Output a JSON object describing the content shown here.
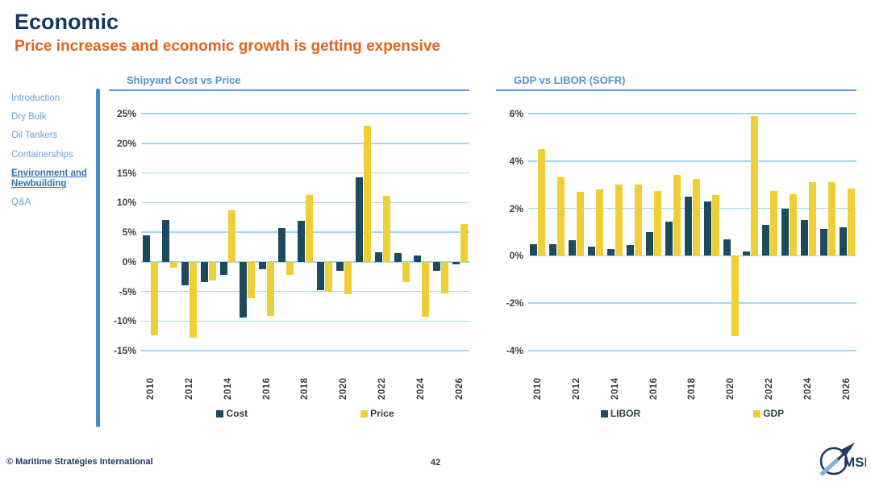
{
  "page": {
    "title": "Economic",
    "subtitle": "Price increases and economic growth is getting expensive",
    "footer_copyright": "© Maritime Strategies International",
    "page_number": "42",
    "logo_text": "MSI"
  },
  "sidebar": {
    "items": [
      {
        "label": "Introduction",
        "active": false
      },
      {
        "label": "Dry Bulk",
        "active": false
      },
      {
        "label": "Oil Tankers",
        "active": false
      },
      {
        "label": "Containerships",
        "active": false
      },
      {
        "label": "Environment and Newbuilding",
        "active": true
      },
      {
        "label": "Q&A",
        "active": false
      }
    ]
  },
  "colors": {
    "navy_bar": "#1e4a5e",
    "yellow_bar": "#eecf35",
    "gridline": "#9fd8f0",
    "chart_title": "#4d96cf",
    "heading": "#17375e",
    "subtitle": "#e2631e",
    "sidebar_link": "#6aa3d8",
    "sidebar_active": "#2e74b5",
    "divider": "#3e8ec9",
    "axis_text": "#3f3f3f",
    "legend_text": "#2f3e46"
  },
  "chart_data": [
    {
      "type": "bar",
      "title": "Shipyard Cost vs Price",
      "categories": [
        "2010",
        "2011",
        "2012",
        "2013",
        "2014",
        "2015",
        "2016",
        "2017",
        "2018",
        "2019",
        "2020",
        "2021",
        "2022",
        "2023",
        "2024",
        "2025",
        "2026"
      ],
      "x_label_every": 2,
      "series": [
        {
          "name": "Cost",
          "color_key": "navy",
          "values": [
            4.4,
            7.0,
            -4.0,
            -3.4,
            -2.2,
            -9.4,
            -1.3,
            5.7,
            6.9,
            -4.8,
            -1.5,
            14.2,
            1.6,
            1.4,
            1.1,
            -1.5,
            -0.4
          ]
        },
        {
          "name": "Price",
          "color_key": "yellow",
          "values": [
            -12.4,
            -1.0,
            -12.8,
            -3.2,
            8.7,
            -6.1,
            -9.1,
            -2.2,
            11.3,
            -5.0,
            -5.5,
            23.0,
            11.1,
            -3.4,
            -9.3,
            -5.3,
            6.4
          ]
        }
      ],
      "ylim": [
        -15,
        25
      ],
      "ytick_step": 5,
      "ytick_labels": [
        "25%",
        "20%",
        "15%",
        "10%",
        "5%",
        "0%",
        "-5%",
        "-10%",
        "-15%"
      ],
      "grid": true,
      "legend_position": "bottom"
    },
    {
      "type": "bar",
      "title": "GDP vs LIBOR (SOFR)",
      "categories": [
        "2010",
        "2011",
        "2012",
        "2013",
        "2014",
        "2015",
        "2016",
        "2017",
        "2018",
        "2019",
        "2020",
        "2021",
        "2022",
        "2023",
        "2024",
        "2025",
        "2026"
      ],
      "x_label_every": 2,
      "series": [
        {
          "name": "LIBOR",
          "color_key": "navy",
          "values": [
            0.5,
            0.5,
            0.65,
            0.4,
            0.3,
            0.45,
            1.0,
            1.45,
            2.5,
            2.3,
            0.7,
            0.2,
            1.3,
            2.0,
            1.5,
            1.15,
            1.2
          ]
        },
        {
          "name": "GDP",
          "color_key": "yellow",
          "values": [
            4.5,
            3.3,
            2.7,
            2.8,
            3.0,
            3.0,
            2.75,
            3.4,
            3.25,
            2.55,
            -3.4,
            5.9,
            2.75,
            2.6,
            3.1,
            3.1,
            2.85
          ]
        }
      ],
      "ylim": [
        -4,
        6
      ],
      "ytick_step": 2,
      "ytick_labels": [
        "6%",
        "4%",
        "2%",
        "0%",
        "-2%",
        "-4%"
      ],
      "grid": true,
      "legend_position": "bottom"
    }
  ]
}
